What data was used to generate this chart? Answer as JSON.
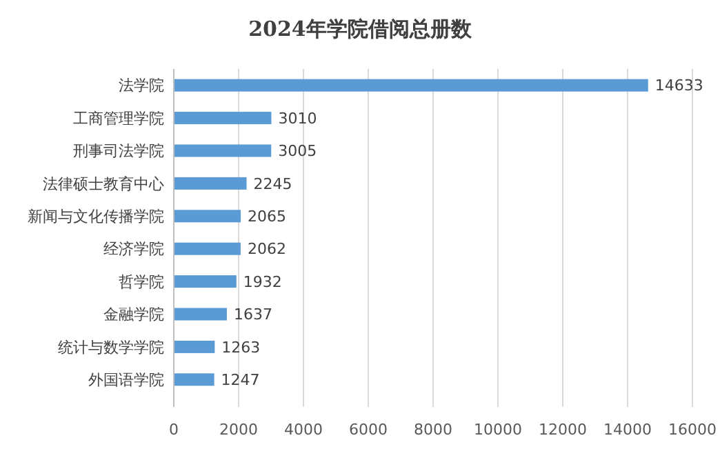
{
  "chart_data": {
    "type": "bar",
    "orientation": "horizontal",
    "title": "2024年学院借阅总册数",
    "categories": [
      "法学院",
      "工商管理学院",
      "刑事司法学院",
      "法律硕士教育中心",
      "新闻与文化传播学院",
      "经济学院",
      "哲学院",
      "金融学院",
      "统计与数学学院",
      "外国语学院"
    ],
    "values": [
      14633,
      3010,
      3005,
      2245,
      2065,
      2062,
      1932,
      1637,
      1263,
      1247
    ],
    "color": "#5b9bd5",
    "xlim": [
      0,
      16000
    ],
    "xticks": [
      0,
      2000,
      4000,
      6000,
      8000,
      10000,
      12000,
      14000,
      16000
    ],
    "grid": "x",
    "data_labels": true
  }
}
